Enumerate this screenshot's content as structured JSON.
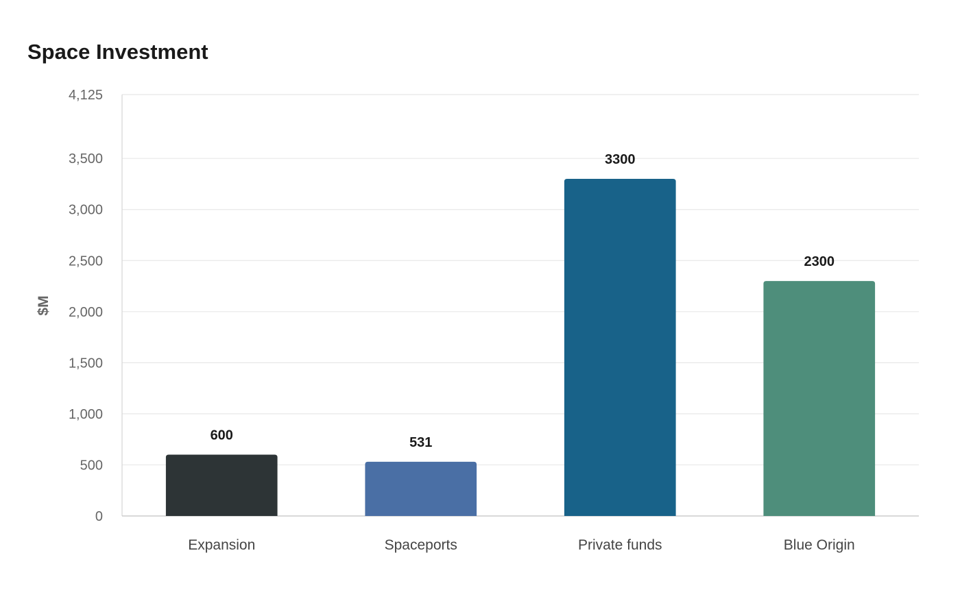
{
  "chart_data": {
    "type": "bar",
    "title": "Space Investment",
    "ylabel": "$M",
    "xlabel": "",
    "categories": [
      "Expansion",
      "Spaceports",
      "Private funds",
      "Blue Origin"
    ],
    "values": [
      600,
      531,
      3300,
      2300
    ],
    "data_labels": [
      "600",
      "531",
      "3300",
      "2300"
    ],
    "colors": [
      "#2d3436",
      "#4a6fa5",
      "#186289",
      "#4e8e7b"
    ],
    "ylim": [
      0,
      4125
    ],
    "yticks": [
      0,
      500,
      1000,
      1500,
      2000,
      2500,
      3000,
      3500,
      4125
    ],
    "ytick_labels": [
      "0",
      "500",
      "1,000",
      "1,500",
      "2,000",
      "2,500",
      "3,000",
      "3,500",
      "4,125"
    ],
    "grid": true,
    "legend": "none"
  }
}
